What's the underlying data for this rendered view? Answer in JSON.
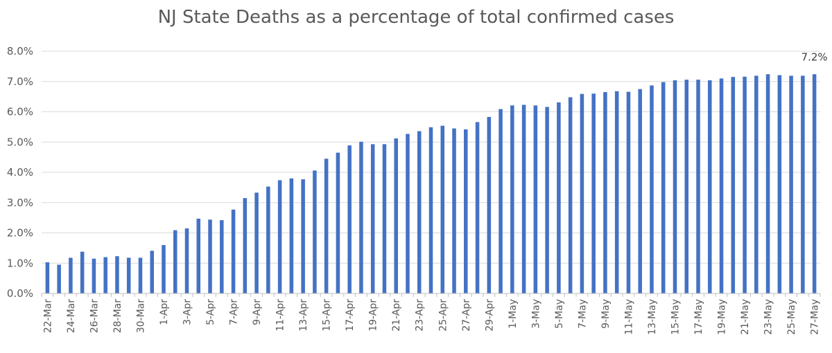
{
  "chart_data": {
    "type": "bar",
    "title": "NJ State Deaths as a percentage of total confirmed cases",
    "xlabel": "",
    "ylabel": "",
    "ylim": [
      0,
      8
    ],
    "y_ticks": [
      "0.0%",
      "1.0%",
      "2.0%",
      "3.0%",
      "4.0%",
      "5.0%",
      "6.0%",
      "7.0%",
      "8.0%"
    ],
    "bar_color": "#4472C4",
    "grid": true,
    "categories": [
      "22-Mar",
      "23-Mar",
      "24-Mar",
      "25-Mar",
      "26-Mar",
      "27-Mar",
      "28-Mar",
      "29-Mar",
      "30-Mar",
      "31-Mar",
      "1-Apr",
      "2-Apr",
      "3-Apr",
      "4-Apr",
      "5-Apr",
      "6-Apr",
      "7-Apr",
      "8-Apr",
      "9-Apr",
      "10-Apr",
      "11-Apr",
      "12-Apr",
      "13-Apr",
      "14-Apr",
      "15-Apr",
      "16-Apr",
      "17-Apr",
      "18-Apr",
      "19-Apr",
      "20-Apr",
      "21-Apr",
      "22-Apr",
      "23-Apr",
      "24-Apr",
      "25-Apr",
      "26-Apr",
      "27-Apr",
      "28-Apr",
      "29-Apr",
      "30-Apr",
      "1-May",
      "2-May",
      "3-May",
      "4-May",
      "5-May",
      "6-May",
      "7-May",
      "8-May",
      "9-May",
      "10-May",
      "11-May",
      "12-May",
      "13-May",
      "14-May",
      "15-May",
      "16-May",
      "17-May",
      "18-May",
      "19-May",
      "20-May",
      "21-May",
      "22-May",
      "23-May",
      "24-May",
      "25-May",
      "26-May",
      "27-May"
    ],
    "x_tick_labels": [
      "22-Mar",
      "24-Mar",
      "26-Mar",
      "28-Mar",
      "30-Mar",
      "1-Apr",
      "3-Apr",
      "5-Apr",
      "7-Apr",
      "9-Apr",
      "11-Apr",
      "13-Apr",
      "15-Apr",
      "17-Apr",
      "19-Apr",
      "21-Apr",
      "23-Apr",
      "25-Apr",
      "27-Apr",
      "29-Apr",
      "1-May",
      "3-May",
      "5-May",
      "7-May",
      "9-May",
      "11-May",
      "13-May",
      "15-May",
      "17-May",
      "19-May",
      "21-May",
      "23-May",
      "25-May",
      "27-May"
    ],
    "values": [
      1.03,
      0.95,
      1.18,
      1.38,
      1.15,
      1.2,
      1.23,
      1.18,
      1.18,
      1.41,
      1.6,
      2.09,
      2.15,
      2.47,
      2.44,
      2.42,
      2.77,
      3.15,
      3.33,
      3.53,
      3.74,
      3.8,
      3.77,
      4.06,
      4.45,
      4.65,
      4.89,
      5.01,
      4.93,
      4.93,
      5.12,
      5.27,
      5.36,
      5.49,
      5.54,
      5.45,
      5.42,
      5.66,
      5.83,
      6.09,
      6.21,
      6.23,
      6.21,
      6.16,
      6.31,
      6.48,
      6.59,
      6.6,
      6.65,
      6.68,
      6.66,
      6.75,
      6.87,
      6.98,
      7.04,
      7.06,
      7.06,
      7.04,
      7.1,
      7.15,
      7.16,
      7.19,
      7.24,
      7.21,
      7.19,
      7.19,
      7.24
    ],
    "annotations": [
      {
        "category": "27-May",
        "text": "7.2%"
      }
    ]
  }
}
